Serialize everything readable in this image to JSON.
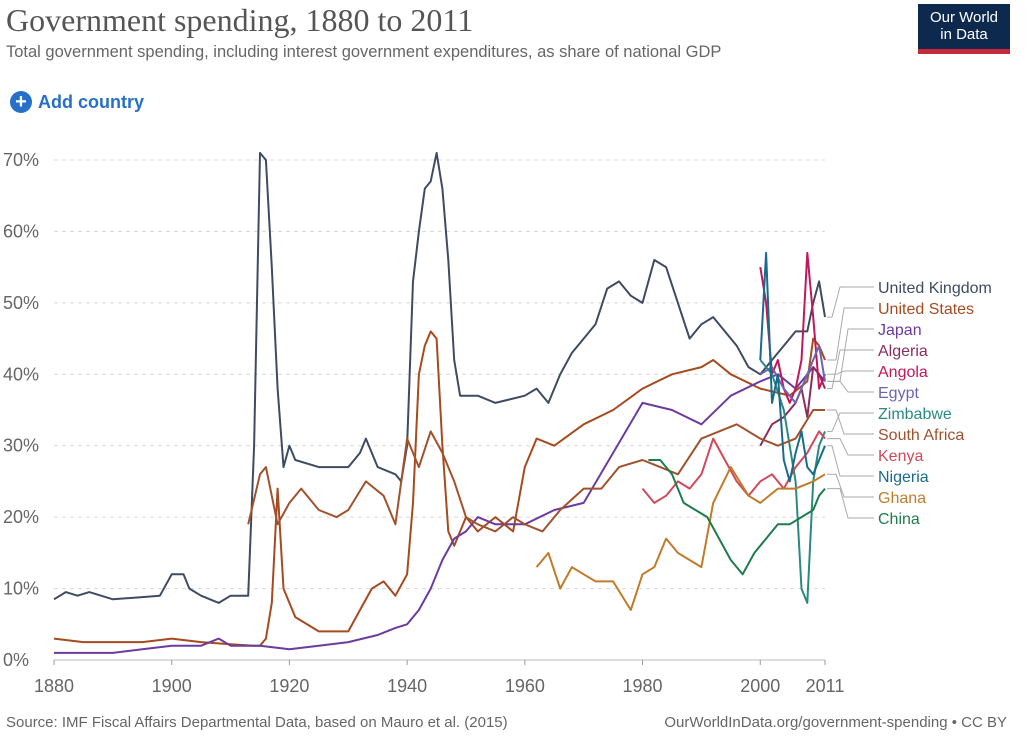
{
  "header": {
    "title": "Government spending, 1880 to 2011",
    "subtitle": "Total government spending, including interest government expenditures, as share of national GDP"
  },
  "logo": {
    "line1": "Our World",
    "line2": "in Data"
  },
  "controls": {
    "add_country": "Add country"
  },
  "footer": {
    "source": "Source: IMF Fiscal Affairs Departmental Data, based on Mauro et al. (2015)",
    "link": "OurWorldInData.org/government-spending • CC BY"
  },
  "chart_data": {
    "type": "line",
    "title": "Government spending, 1880 to 2011",
    "xlim": [
      1880,
      2011
    ],
    "ylim": [
      0,
      70
    ],
    "x_ticks": [
      1880,
      1900,
      1920,
      1940,
      1960,
      1980,
      2000,
      2011
    ],
    "x_tick_labels": [
      "1880",
      "1900",
      "1920",
      "1940",
      "1960",
      "1980",
      "2000",
      "2011"
    ],
    "y_ticks": [
      0,
      10,
      20,
      30,
      40,
      50,
      60,
      70
    ],
    "y_tick_labels": [
      "0%",
      "10%",
      "20%",
      "30%",
      "40%",
      "50%",
      "60%",
      "70%"
    ],
    "grid": "horizontal dashed",
    "legend": "right, line-end labels",
    "series": [
      {
        "name": "United Kingdom",
        "color": "#3f4b62",
        "x": [
          1880,
          1882,
          1884,
          1886,
          1888,
          1890,
          1895,
          1898,
          1900,
          1902,
          1903,
          1905,
          1908,
          1910,
          1912,
          1913,
          1914,
          1915,
          1916,
          1917,
          1918,
          1919,
          1920,
          1921,
          1925,
          1930,
          1932,
          1933,
          1935,
          1938,
          1939,
          1940,
          1941,
          1942,
          1943,
          1944,
          1945,
          1946,
          1947,
          1948,
          1949,
          1950,
          1952,
          1955,
          1960,
          1962,
          1964,
          1966,
          1968,
          1970,
          1972,
          1974,
          1976,
          1978,
          1980,
          1982,
          1984,
          1986,
          1988,
          1990,
          1992,
          1994,
          1996,
          1998,
          2000,
          2002,
          2004,
          2006,
          2008,
          2009,
          2010,
          2011
        ],
        "y": [
          8.5,
          9.5,
          9,
          9.5,
          9,
          8.5,
          8.8,
          9,
          12,
          12,
          10,
          9,
          8,
          9,
          9,
          9,
          30,
          71,
          70,
          55,
          38,
          27,
          30,
          28,
          27,
          27,
          29,
          31,
          27,
          26,
          25,
          30,
          53,
          60,
          66,
          67,
          71,
          66,
          56,
          42,
          37,
          37,
          37,
          36,
          37,
          38,
          36,
          40,
          43,
          45,
          47,
          52,
          53,
          51,
          50,
          56,
          55,
          50,
          45,
          47,
          48,
          46,
          44,
          41,
          40,
          42,
          44,
          46,
          46,
          50,
          53,
          48
        ]
      },
      {
        "name": "United States",
        "color": "#a64a1f",
        "x": [
          1880,
          1885,
          1890,
          1895,
          1900,
          1905,
          1910,
          1914,
          1915,
          1916,
          1917,
          1918,
          1919,
          1920,
          1921,
          1925,
          1930,
          1932,
          1934,
          1936,
          1938,
          1940,
          1941,
          1942,
          1943,
          1944,
          1945,
          1946,
          1947,
          1948,
          1950,
          1952,
          1955,
          1958,
          1960,
          1962,
          1965,
          1970,
          1975,
          1980,
          1985,
          1990,
          1992,
          1995,
          2000,
          2005,
          2008,
          2009,
          2010,
          2011
        ],
        "y": [
          3,
          2.5,
          2.5,
          2.5,
          3,
          2.5,
          2.2,
          2,
          2,
          3,
          8,
          24,
          10,
          8,
          6,
          4,
          4,
          7,
          10,
          11,
          9,
          12,
          22,
          40,
          44,
          46,
          45,
          30,
          18,
          16,
          20,
          18,
          20,
          18,
          27,
          31,
          30,
          33,
          35,
          38,
          40,
          41,
          42,
          40,
          38,
          37,
          39,
          45,
          44,
          42
        ]
      },
      {
        "name": "Japan",
        "color": "#6c3b9e",
        "x": [
          1880,
          1885,
          1890,
          1895,
          1900,
          1905,
          1908,
          1910,
          1915,
          1920,
          1925,
          1930,
          1935,
          1938,
          1940,
          1942,
          1944,
          1946,
          1948,
          1950,
          1952,
          1955,
          1960,
          1965,
          1970,
          1975,
          1980,
          1985,
          1990,
          1995,
          2000,
          2003,
          2006,
          2009,
          2010,
          2011
        ],
        "y": [
          1,
          1,
          1,
          1.5,
          2,
          2,
          3,
          2,
          2,
          1.5,
          2,
          2.5,
          3.5,
          4.5,
          5,
          7,
          10,
          14,
          17,
          18,
          20,
          19,
          19,
          21,
          22,
          29,
          36,
          35,
          33,
          37,
          39,
          40,
          38,
          41,
          40,
          39
        ]
      },
      {
        "name": "Algeria",
        "color": "#8c2d5a",
        "x": [
          2000,
          2002,
          2004,
          2006,
          2007,
          2008,
          2009,
          2010,
          2011
        ],
        "y": [
          30,
          33,
          34,
          36,
          38,
          34,
          41,
          40,
          38
        ]
      },
      {
        "name": "Angola",
        "color": "#c2185b",
        "x": [
          2000,
          2001,
          2002,
          2003,
          2004,
          2005,
          2006,
          2007,
          2008,
          2009,
          2010,
          2011
        ],
        "y": [
          55,
          50,
          40,
          42,
          38,
          36,
          38,
          42,
          57,
          48,
          38,
          40
        ]
      },
      {
        "name": "Egypt",
        "color": "#6b65b0",
        "x": [
          2000,
          2002,
          2004,
          2006,
          2008,
          2009,
          2010,
          2011
        ],
        "y": [
          40,
          41,
          38,
          36,
          40,
          42,
          44,
          39
        ]
      },
      {
        "name": "Zimbabwe",
        "color": "#2a8a80",
        "x": [
          2000,
          2002,
          2004,
          2006,
          2007,
          2008,
          2009,
          2010,
          2011
        ],
        "y": [
          42,
          40,
          35,
          25,
          10,
          8,
          25,
          30,
          32
        ]
      },
      {
        "name": "South Africa",
        "color": "#a0522d",
        "x": [
          1913,
          1915,
          1916,
          1918,
          1920,
          1922,
          1925,
          1928,
          1930,
          1933,
          1936,
          1938,
          1940,
          1942,
          1944,
          1946,
          1948,
          1950,
          1952,
          1955,
          1958,
          1960,
          1963,
          1966,
          1970,
          1973,
          1976,
          1980,
          1983,
          1986,
          1990,
          1993,
          1996,
          2000,
          2003,
          2006,
          2009,
          2011
        ],
        "y": [
          19,
          26,
          27,
          19,
          22,
          24,
          21,
          20,
          21,
          25,
          23,
          19,
          31,
          27,
          32,
          29,
          25,
          20,
          19,
          18,
          20,
          19,
          18,
          21,
          24,
          24,
          27,
          28,
          27,
          26,
          31,
          32,
          33,
          31,
          30,
          31,
          35,
          35
        ]
      },
      {
        "name": "Kenya",
        "color": "#d04a5a",
        "x": [
          1980,
          1982,
          1984,
          1986,
          1988,
          1990,
          1992,
          1994,
          1996,
          1998,
          2000,
          2002,
          2004,
          2006,
          2008,
          2010,
          2011
        ],
        "y": [
          24,
          22,
          23,
          25,
          24,
          26,
          31,
          28,
          25,
          23,
          25,
          26,
          24,
          27,
          29,
          32,
          31
        ]
      },
      {
        "name": "Nigeria",
        "color": "#1a6a8a",
        "x": [
          2000,
          2001,
          2002,
          2003,
          2004,
          2005,
          2006,
          2007,
          2008,
          2009,
          2010,
          2011
        ],
        "y": [
          42,
          57,
          36,
          40,
          28,
          25,
          29,
          32,
          27,
          26,
          28,
          30
        ]
      },
      {
        "name": "Ghana",
        "color": "#c07b2b",
        "x": [
          1962,
          1964,
          1966,
          1968,
          1970,
          1972,
          1975,
          1978,
          1980,
          1982,
          1984,
          1986,
          1988,
          1990,
          1992,
          1995,
          1998,
          2000,
          2003,
          2006,
          2009,
          2011
        ],
        "y": [
          13,
          15,
          10,
          13,
          12,
          11,
          11,
          7,
          12,
          13,
          17,
          15,
          14,
          13,
          22,
          27,
          23,
          22,
          24,
          24,
          25,
          26
        ]
      },
      {
        "name": "China",
        "color": "#1e7d4e",
        "x": [
          1981,
          1983,
          1985,
          1987,
          1989,
          1991,
          1993,
          1995,
          1997,
          1999,
          2001,
          2003,
          2005,
          2007,
          2009,
          2010,
          2011
        ],
        "y": [
          28,
          28,
          26,
          22,
          21,
          20,
          17,
          14,
          12,
          15,
          17,
          19,
          19,
          20,
          21,
          23,
          24
        ]
      }
    ]
  }
}
